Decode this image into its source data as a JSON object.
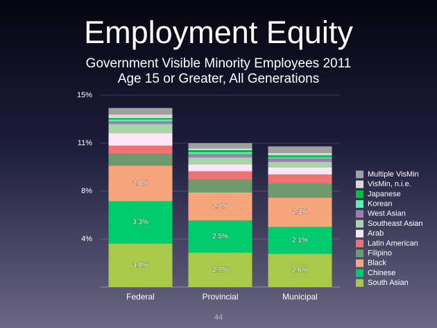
{
  "chart_data": {
    "type": "stacked_bar",
    "title": "Employment Equity",
    "subtitle": [
      "Government Visible Minority Employees 2011",
      "Age 15 or Greater, All Generations"
    ],
    "page_number": "44",
    "categories": [
      "Federal",
      "Provincial",
      "Municipal"
    ],
    "ylim": [
      0,
      15
    ],
    "yticks": [
      {
        "value": 3.75,
        "label": "4%"
      },
      {
        "value": 7.5,
        "label": "8%"
      },
      {
        "value": 11.25,
        "label": "11%"
      },
      {
        "value": 15,
        "label": "15%"
      }
    ],
    "grid": true,
    "legend": "right",
    "series": [
      {
        "name": "South Asian",
        "color": "#a8c94a",
        "values": [
          3.4,
          2.7,
          2.6
        ],
        "value_labels": [
          "3.4%",
          "2.7%",
          "2.6%"
        ]
      },
      {
        "name": "Chinese",
        "color": "#00cc6e",
        "values": [
          3.3,
          2.5,
          2.1
        ],
        "value_labels": [
          "3.3%",
          "2.5%",
          "2.1%"
        ]
      },
      {
        "name": "Black",
        "color": "#f7a57a",
        "values": [
          2.8,
          2.2,
          2.3
        ],
        "value_labels": [
          "2.8%",
          "2.2%",
          "2.3%"
        ]
      },
      {
        "name": "Filipino",
        "color": "#6e9b6e",
        "values": [
          0.9,
          1.0,
          1.1
        ]
      },
      {
        "name": "Latin American",
        "color": "#f07373",
        "values": [
          0.65,
          0.65,
          0.7
        ]
      },
      {
        "name": "Arab",
        "color": "#fde6f8",
        "values": [
          1.0,
          0.55,
          0.55
        ]
      },
      {
        "name": "Southeast Asian",
        "color": "#a8d4a8",
        "values": [
          0.7,
          0.55,
          0.45
        ]
      },
      {
        "name": "West Asian",
        "color": "#9a7fb0",
        "values": [
          0.2,
          0.25,
          0.25
        ]
      },
      {
        "name": "Korean",
        "color": "#5cf0b0",
        "values": [
          0.15,
          0.15,
          0.1
        ]
      },
      {
        "name": "Japanese",
        "color": "#00c040",
        "values": [
          0.1,
          0.15,
          0.15
        ]
      },
      {
        "name": "VisMin, n.i.e.",
        "color": "#d8d8d8",
        "values": [
          0.3,
          0.15,
          0.2
        ]
      },
      {
        "name": "Multiple VisMin",
        "color": "#a0a0a0",
        "values": [
          0.5,
          0.4,
          0.5
        ]
      }
    ]
  }
}
